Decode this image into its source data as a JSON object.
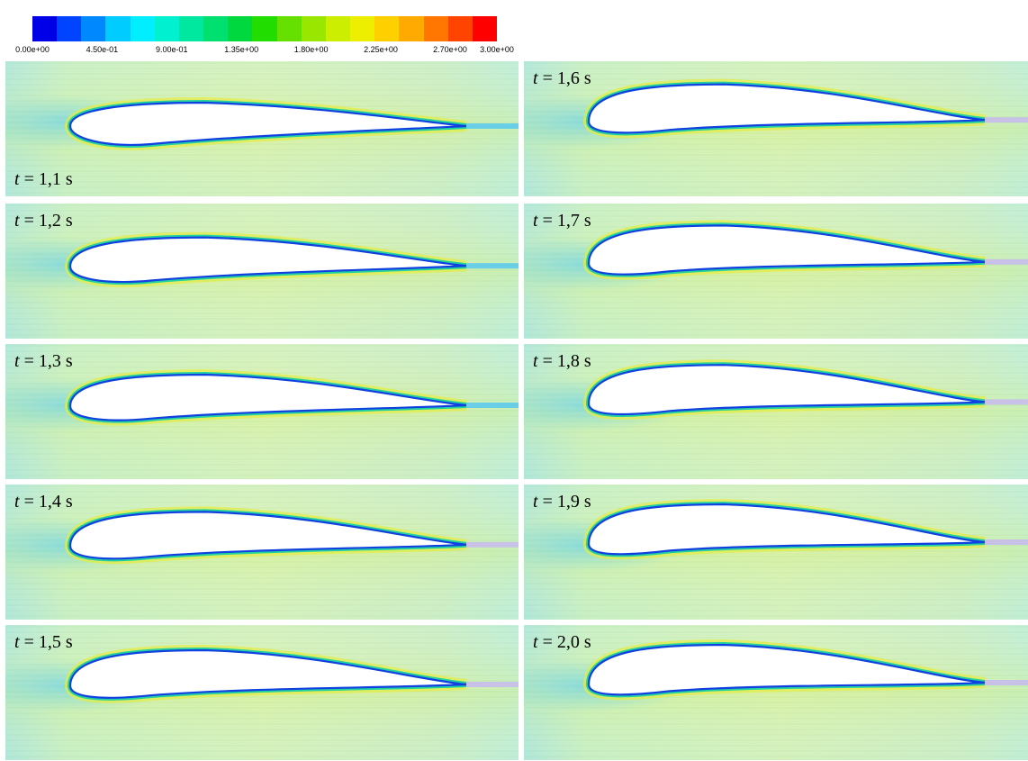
{
  "colorbar": {
    "colors": [
      "#0000e6",
      "#0044ff",
      "#0088ff",
      "#00ccff",
      "#00eeff",
      "#00f0d0",
      "#00e8a0",
      "#00e070",
      "#00d840",
      "#22dd00",
      "#66e000",
      "#99e600",
      "#ccee00",
      "#eeee00",
      "#ffd000",
      "#ffaa00",
      "#ff7700",
      "#ff4400",
      "#ff0000"
    ],
    "ticks": [
      "0.00e+00",
      "4.50e-01",
      "9.00e-01",
      "1.35e+00",
      "1.80e+00",
      "2.25e+00",
      "2.70e+00",
      "3.00e+00"
    ],
    "tick_values": [
      0,
      0.45,
      0.9,
      1.35,
      1.8,
      2.25,
      2.7,
      3.0
    ],
    "range": [
      0,
      3.0
    ]
  },
  "panels": [
    {
      "t": "t",
      "rest": " = 1,1 s",
      "camber": 0.0
    },
    {
      "t": "t",
      "rest": " = 1,2 s",
      "camber": 0.35
    },
    {
      "t": "t",
      "rest": " = 1,3 s",
      "camber": 0.5
    },
    {
      "t": "t",
      "rest": " = 1,4 s",
      "camber": 0.65
    },
    {
      "t": "t",
      "rest": " = 1,5 s",
      "camber": 0.75
    },
    {
      "t": "t",
      "rest": " = 1,6 s",
      "camber": 0.85
    },
    {
      "t": "t",
      "rest": " = 1,7 s",
      "camber": 0.9
    },
    {
      "t": "t",
      "rest": " = 1,8 s",
      "camber": 0.95
    },
    {
      "t": "t",
      "rest": " = 1,9 s",
      "camber": 1.0
    },
    {
      "t": "t",
      "rest": " = 2,0 s",
      "camber": 1.0
    }
  ]
}
